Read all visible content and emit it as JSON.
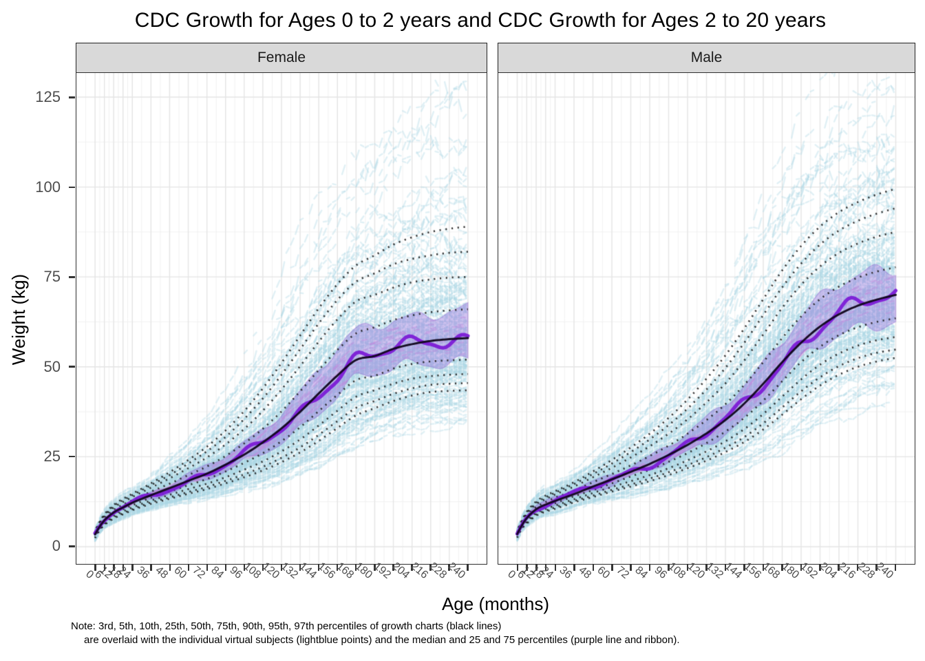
{
  "chart_data": {
    "type": "line",
    "title": "CDC Growth for Ages 0 to 2 years and CDC Growth for Ages 2 to 20 years",
    "xlabel": "Age (months)",
    "ylabel": "Weight (kg)",
    "facets": [
      {
        "label": "Female"
      },
      {
        "label": "Male"
      }
    ],
    "x_ticks": [
      0,
      6,
      12,
      18,
      24,
      36,
      48,
      60,
      72,
      84,
      96,
      108,
      120,
      132,
      144,
      156,
      168,
      180,
      192,
      204,
      216,
      228,
      240
    ],
    "y_ticks": [
      0,
      25,
      50,
      75,
      100,
      125
    ],
    "xlim": [
      -12,
      252
    ],
    "ylim": [
      -4.8,
      131.7
    ],
    "grid": true,
    "legend_position": "none",
    "percentile_labels": [
      "3rd",
      "5th",
      "10th",
      "25th",
      "50th",
      "75th",
      "90th",
      "95th",
      "97th"
    ],
    "percentiles": {
      "ages": [
        0,
        3,
        6,
        12,
        18,
        24,
        36,
        48,
        60,
        72,
        84,
        96,
        108,
        120,
        132,
        144,
        156,
        168,
        180,
        192,
        204,
        216,
        228,
        240
      ],
      "female": {
        "p3": [
          2.4,
          4.6,
          6.0,
          7.8,
          9.0,
          10.1,
          11.9,
          13.3,
          14.7,
          16.0,
          17.6,
          19.3,
          21.2,
          23.5,
          26.2,
          29.4,
          33.0,
          36.5,
          38.5,
          40.5,
          42.0,
          43.0,
          43.3,
          43.5
        ],
        "p5": [
          2.6,
          4.8,
          6.2,
          8.1,
          9.3,
          10.4,
          12.3,
          13.7,
          15.2,
          16.6,
          18.3,
          20.1,
          22.2,
          24.7,
          27.6,
          31.1,
          34.9,
          38.6,
          40.5,
          42.5,
          44.0,
          45.0,
          45.3,
          45.5
        ],
        "p10": [
          2.8,
          5.0,
          6.5,
          8.5,
          9.8,
          10.9,
          12.8,
          14.4,
          16.0,
          17.5,
          19.3,
          21.4,
          23.7,
          26.5,
          29.8,
          33.7,
          37.8,
          41.7,
          43.5,
          45.3,
          46.7,
          47.4,
          47.8,
          48.0
        ],
        "p25": [
          3.1,
          5.3,
          6.9,
          9.0,
          10.4,
          11.5,
          13.6,
          15.3,
          17.1,
          18.8,
          20.9,
          23.3,
          26.0,
          29.3,
          33.2,
          37.7,
          42.2,
          46.3,
          47.5,
          49.5,
          50.8,
          51.5,
          51.8,
          52.0
        ],
        "p50": [
          3.4,
          5.6,
          7.3,
          9.5,
          10.9,
          12.2,
          14.3,
          16.3,
          18.3,
          20.3,
          22.8,
          25.6,
          29.0,
          32.9,
          37.5,
          42.6,
          47.6,
          51.9,
          53.0,
          55.0,
          56.3,
          57.2,
          57.7,
          58.0
        ],
        "p75": [
          3.8,
          6.0,
          7.8,
          10.2,
          11.7,
          12.9,
          15.3,
          17.5,
          19.9,
          22.3,
          25.2,
          28.7,
          32.8,
          37.6,
          43.2,
          49.1,
          54.7,
          59.3,
          61.0,
          63.0,
          64.3,
          65.2,
          65.7,
          66.0
        ],
        "p90": [
          4.1,
          6.5,
          8.4,
          10.9,
          12.4,
          13.8,
          16.4,
          19.0,
          21.8,
          24.8,
          28.4,
          32.7,
          37.8,
          43.7,
          50.2,
          57.0,
          63.2,
          68.2,
          70.0,
          72.0,
          73.5,
          74.3,
          74.8,
          75.0
        ],
        "p95": [
          4.3,
          6.8,
          8.7,
          11.3,
          12.9,
          14.3,
          17.1,
          19.9,
          23.1,
          26.5,
          30.5,
          35.5,
          41.2,
          47.8,
          54.9,
          62.1,
          68.6,
          73.7,
          76.0,
          78.5,
          80.0,
          81.0,
          81.7,
          82.0
        ],
        "p97": [
          4.4,
          7.0,
          9.0,
          11.6,
          13.3,
          14.7,
          17.6,
          20.7,
          24.1,
          27.8,
          32.3,
          37.7,
          44.0,
          51.1,
          58.7,
          66.3,
          73.0,
          78.2,
          81.0,
          84.0,
          86.0,
          87.5,
          88.4,
          89.0
        ]
      },
      "male": {
        "p3": [
          2.5,
          5.0,
          6.4,
          8.6,
          9.7,
          10.5,
          12.3,
          13.8,
          15.3,
          16.7,
          18.2,
          19.9,
          21.8,
          23.9,
          26.3,
          29.1,
          32.6,
          36.7,
          41.0,
          44.8,
          47.8,
          50.0,
          51.5,
          52.5
        ],
        "p5": [
          2.7,
          5.2,
          6.6,
          8.9,
          10.0,
          10.9,
          12.7,
          14.2,
          15.8,
          17.3,
          18.9,
          20.7,
          22.7,
          24.9,
          27.5,
          30.5,
          34.3,
          38.7,
          43.2,
          47.1,
          50.2,
          52.4,
          53.9,
          54.8
        ],
        "p10": [
          2.9,
          5.5,
          7.0,
          9.3,
          10.5,
          11.4,
          13.2,
          14.9,
          16.6,
          18.2,
          19.9,
          21.8,
          24.0,
          26.5,
          29.3,
          32.7,
          36.9,
          41.7,
          46.5,
          50.6,
          53.7,
          55.9,
          57.4,
          58.3
        ],
        "p25": [
          3.2,
          5.7,
          7.5,
          9.8,
          11.1,
          12.1,
          14.0,
          15.7,
          17.6,
          19.5,
          21.4,
          23.6,
          26.0,
          28.8,
          32.0,
          35.8,
          40.6,
          46.0,
          51.3,
          55.6,
          58.8,
          61.0,
          62.5,
          63.5
        ],
        "p50": [
          3.5,
          6.0,
          7.9,
          10.4,
          11.7,
          12.7,
          14.6,
          16.7,
          18.7,
          20.8,
          23.0,
          25.5,
          28.3,
          31.5,
          35.2,
          39.8,
          45.3,
          51.3,
          56.7,
          61.2,
          64.6,
          67.0,
          68.7,
          70.0
        ],
        "p75": [
          3.9,
          6.4,
          8.5,
          11.0,
          12.4,
          13.6,
          15.6,
          17.9,
          20.2,
          22.6,
          25.2,
          28.1,
          31.4,
          35.2,
          39.6,
          45.0,
          51.3,
          58.0,
          64.0,
          68.8,
          72.3,
          74.8,
          76.5,
          77.7
        ],
        "p90": [
          4.2,
          6.9,
          9.1,
          11.8,
          13.2,
          14.5,
          16.7,
          19.3,
          21.9,
          24.8,
          27.9,
          31.4,
          35.4,
          40.1,
          45.4,
          51.8,
          59.0,
          66.4,
          72.8,
          77.9,
          81.7,
          84.3,
          86.2,
          87.5
        ],
        "p95": [
          4.4,
          7.2,
          9.4,
          12.2,
          13.7,
          15.0,
          17.4,
          20.2,
          23.1,
          26.3,
          29.8,
          33.8,
          38.4,
          43.7,
          49.7,
          56.7,
          64.4,
          72.1,
          78.7,
          84.0,
          87.9,
          90.6,
          92.6,
          94.1
        ],
        "p97": [
          4.5,
          7.4,
          9.7,
          12.6,
          14.2,
          15.4,
          17.9,
          20.9,
          24.1,
          27.6,
          31.4,
          35.8,
          40.9,
          46.7,
          53.2,
          60.7,
          68.8,
          76.8,
          83.6,
          89.0,
          93.0,
          95.8,
          97.9,
          99.5
        ]
      }
    },
    "subject_summary": {
      "median": "purple wiggly line following 50th percentile",
      "ribbon": "25th to 75th percentile band of virtual subjects"
    },
    "colors": {
      "subject_points": "#ADD8E6",
      "subject_points_plum": "#DDA0DD",
      "median_line": "#7C1CD6",
      "chart_median_line": "#10061C",
      "ribbon": "#9370DB",
      "percentile_lines": "#1A1A1A",
      "grid_major": "#E4E4E4",
      "grid_minor": "#F1F1F1",
      "strip_fill": "#D9D9D9",
      "axis_text": "#4D4D4D",
      "panel_border": "#2E2E2E"
    },
    "note": [
      "Note: 3rd, 5th, 10th, 25th, 50th, 75th, 90th, 95th, 97th percentiles of growth charts (black lines)",
      "are overlaid with the individual virtual subjects (lightblue points) and the median and 25 and 75 percentiles (purple line and ribbon)."
    ]
  }
}
